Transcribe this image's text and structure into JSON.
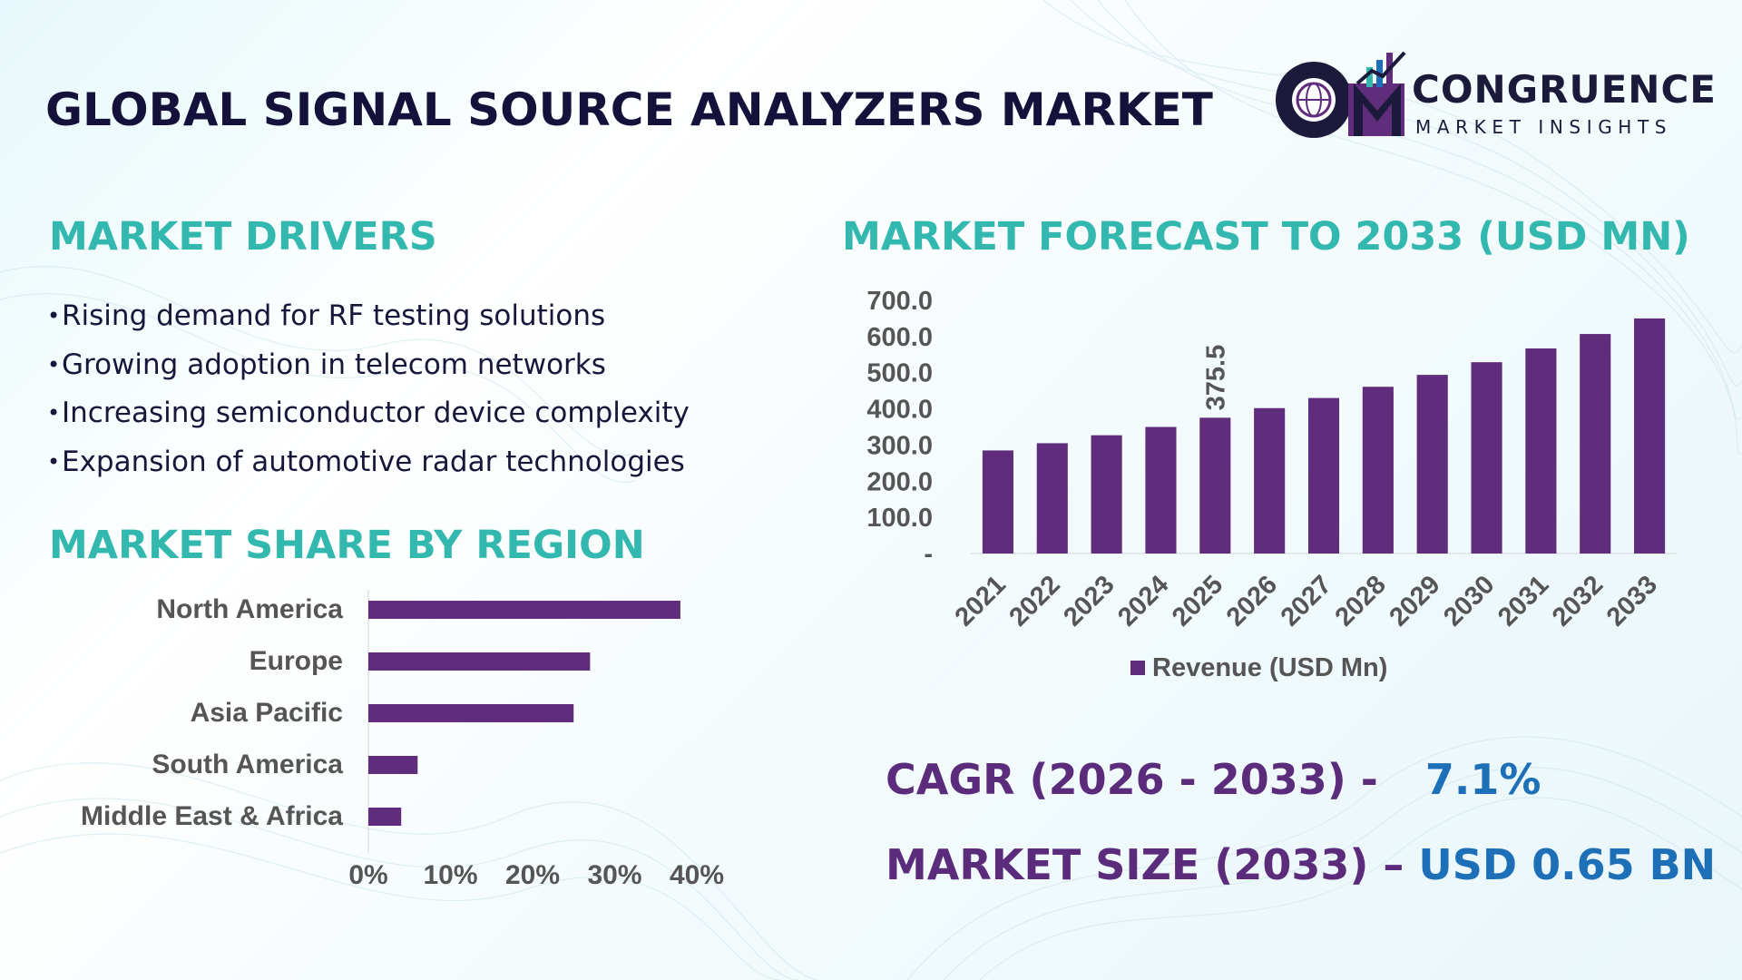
{
  "header": {
    "title": "GLOBAL SIGNAL SOURCE ANALYZERS MARKET"
  },
  "logo": {
    "word": "CONGRUENCE",
    "sub": "MARKET INSIGHTS"
  },
  "drivers": {
    "title": "MARKET DRIVERS",
    "items": [
      "Rising demand for RF testing solutions",
      "Growing adoption in telecom networks",
      "Increasing semiconductor device complexity",
      "Expansion of automotive radar technologies"
    ]
  },
  "region": {
    "title": "MARKET SHARE BY REGION"
  },
  "forecast": {
    "title": "MARKET FORECAST TO 2033 (USD MN)"
  },
  "stats": {
    "cagr_label": "CAGR (2026 - 2033) -",
    "cagr_value": "7.1%",
    "size_label": "MARKET SIZE (2033) –",
    "size_value": "USD 0.65 BN"
  },
  "colors": {
    "bar": "#5f2d7b",
    "section_title": "#33b8b0",
    "axis_text": "#555555"
  },
  "chart_data": [
    {
      "type": "bar",
      "orientation": "horizontal",
      "categories": [
        "North America",
        "Europe",
        "Asia Pacific",
        "South America",
        "Middle East & Africa"
      ],
      "values": [
        38,
        27,
        25,
        6,
        4
      ],
      "x_ticks": [
        "0%",
        "10%",
        "20%",
        "30%",
        "40%"
      ],
      "xlim": [
        0,
        40
      ],
      "grid": false
    },
    {
      "type": "bar",
      "categories": [
        "2021",
        "2022",
        "2023",
        "2024",
        "2025",
        "2026",
        "2027",
        "2028",
        "2029",
        "2030",
        "2031",
        "2032",
        "2033"
      ],
      "series": [
        {
          "name": "Revenue (USD Mn)",
          "values": [
            285,
            305,
            327,
            350,
            375.5,
            402,
            430,
            461,
            494,
            529,
            567,
            607,
            650
          ]
        }
      ],
      "y_ticks": [
        "-",
        "100.0",
        "200.0",
        "300.0",
        "400.0",
        "500.0",
        "600.0",
        "700.0"
      ],
      "ylim": [
        0,
        700
      ],
      "data_labels": [
        {
          "category": "2025",
          "text": "375.5"
        }
      ],
      "legend": "bottom",
      "grid": false
    }
  ]
}
